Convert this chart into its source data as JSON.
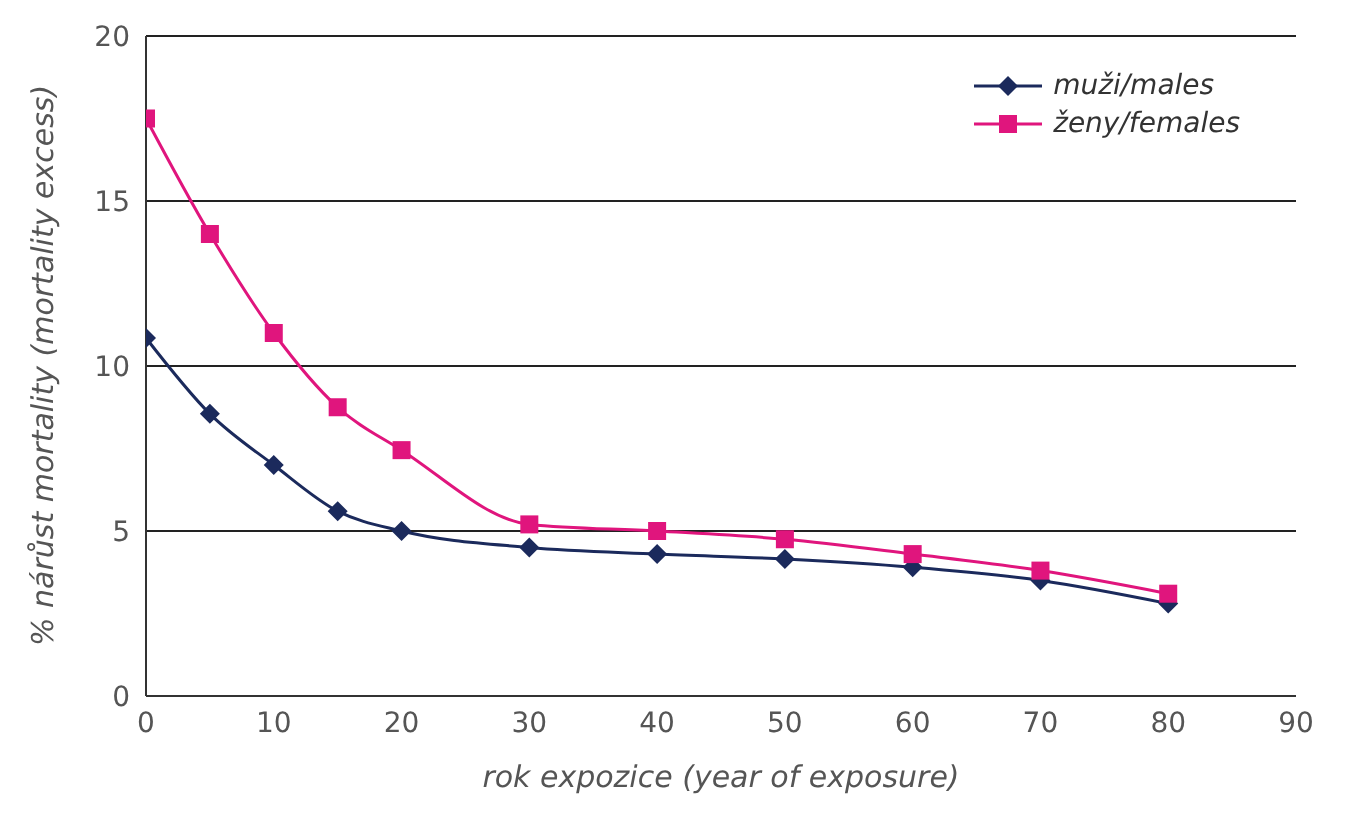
{
  "chart_data": {
    "type": "line",
    "xlabel": "rok expozice (year of exposure)",
    "ylabel": "% nárůst mortality (mortality excess)",
    "x": [
      0,
      5,
      10,
      15,
      20,
      30,
      40,
      50,
      60,
      70,
      80
    ],
    "series": [
      {
        "name": "muži/males",
        "color": "#1b2a5c",
        "marker": "diamond",
        "values": [
          10.85,
          8.55,
          7.0,
          5.6,
          5.0,
          4.5,
          4.3,
          4.15,
          3.9,
          3.5,
          2.8
        ]
      },
      {
        "name": "ženy/females",
        "color": "#e0157d",
        "marker": "square",
        "values": [
          17.5,
          14.0,
          11.0,
          8.75,
          7.45,
          5.2,
          5.0,
          4.75,
          4.3,
          3.8,
          3.1
        ]
      }
    ],
    "xlim": [
      0,
      90
    ],
    "xticks": [
      0,
      10,
      20,
      30,
      40,
      50,
      60,
      70,
      80,
      90
    ],
    "ylim": [
      0,
      20
    ],
    "yticks": [
      0,
      5,
      10,
      15,
      20
    ],
    "grid": "y",
    "legend": "top right",
    "line_style": "solid"
  }
}
